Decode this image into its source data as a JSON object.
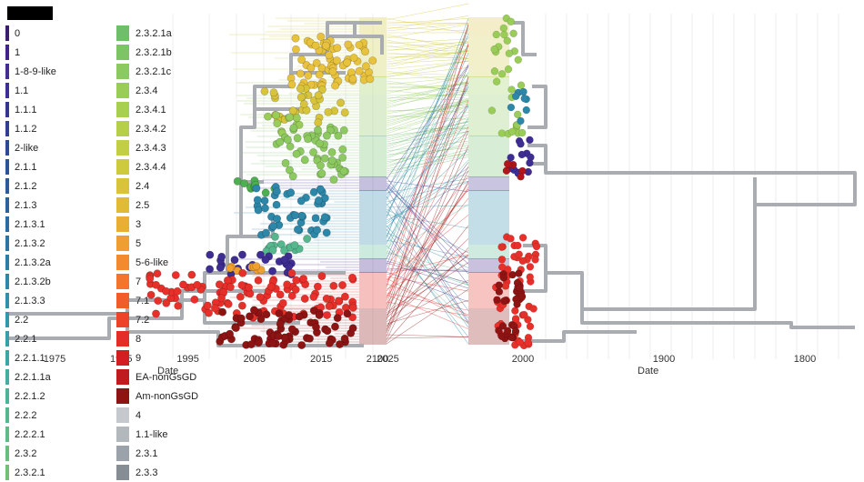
{
  "legend_left": {
    "items": [
      {
        "label": "0",
        "color": "#3b1d6e"
      },
      {
        "label": "1",
        "color": "#41228a"
      },
      {
        "label": "1-8-9-like",
        "color": "#432c92"
      },
      {
        "label": "1.1",
        "color": "#3b2f95"
      },
      {
        "label": "1.1.1",
        "color": "#34368f"
      },
      {
        "label": "1.1.2",
        "color": "#313e93"
      },
      {
        "label": "2-like",
        "color": "#2e4996"
      },
      {
        "label": "2.1.1",
        "color": "#2d5298"
      },
      {
        "label": "2.1.2",
        "color": "#2c5a9b"
      },
      {
        "label": "2.1.3",
        "color": "#2b629d"
      },
      {
        "label": "2.1.3.1",
        "color": "#2b6ba0"
      },
      {
        "label": "2.1.3.2",
        "color": "#2b74a3"
      },
      {
        "label": "2.1.3.2a",
        "color": "#2b7ea6"
      },
      {
        "label": "2.1.3.2b",
        "color": "#2c87a8"
      },
      {
        "label": "2.1.3.3",
        "color": "#2e90a9"
      },
      {
        "label": "2.2",
        "color": "#3198a9"
      },
      {
        "label": "2.2.1",
        "color": "#35a0a8"
      },
      {
        "label": "2.2.1.1",
        "color": "#3ba7a4"
      },
      {
        "label": "2.2.1.1a",
        "color": "#43ad9f"
      },
      {
        "label": "2.2.1.2",
        "color": "#4cb397"
      },
      {
        "label": "2.2.2",
        "color": "#55b78e"
      },
      {
        "label": "2.2.2.1",
        "color": "#5fbb86"
      },
      {
        "label": "2.3.2",
        "color": "#68be7d"
      },
      {
        "label": "2.3.2.1",
        "color": "#72c076"
      }
    ]
  },
  "legend_right": {
    "items": [
      {
        "label": "2.3.2.1a",
        "color": "#6fbf6a"
      },
      {
        "label": "2.3.2.1b",
        "color": "#7dc465"
      },
      {
        "label": "2.3.2.1c",
        "color": "#8cc95f"
      },
      {
        "label": "2.3.4",
        "color": "#9acc58"
      },
      {
        "label": "2.3.4.1",
        "color": "#a9cf51"
      },
      {
        "label": "2.3.4.2",
        "color": "#b6cf4a"
      },
      {
        "label": "2.3.4.3",
        "color": "#c2ce44"
      },
      {
        "label": "2.3.4.4",
        "color": "#cdca3e"
      },
      {
        "label": "2.4",
        "color": "#d8c43a"
      },
      {
        "label": "2.5",
        "color": "#e2bb36"
      },
      {
        "label": "3",
        "color": "#e9ae33"
      },
      {
        "label": "5",
        "color": "#ef9e31"
      },
      {
        "label": "5-6-like",
        "color": "#f28a2f"
      },
      {
        "label": "7",
        "color": "#f3742d"
      },
      {
        "label": "7.1",
        "color": "#f15c2b"
      },
      {
        "label": "7.2",
        "color": "#ec4329"
      },
      {
        "label": "8",
        "color": "#e32d26"
      },
      {
        "label": "9",
        "color": "#d41f22"
      },
      {
        "label": "EA-nonGsGD",
        "color": "#c01b1e"
      },
      {
        "label": "Am-nonGsGD",
        "color": "#8e1414"
      },
      {
        "label": "4",
        "color": "#c5c9cd"
      },
      {
        "label": "1.1-like",
        "color": "#b3b8bd"
      },
      {
        "label": "2.3.1",
        "color": "#9ca2a9"
      },
      {
        "label": "2.3.3",
        "color": "#868d95"
      }
    ]
  },
  "left_axis": {
    "ticks": [
      {
        "label": "1975",
        "year": 1975
      },
      {
        "label": "1985",
        "year": 1985
      },
      {
        "label": "1995",
        "year": 1995
      },
      {
        "label": "2005",
        "year": 2005
      },
      {
        "label": "2015",
        "year": 2015
      },
      {
        "label": "2025",
        "year": 2025
      }
    ],
    "title": "Date"
  },
  "right_axis": {
    "ticks": [
      {
        "label": "2100",
        "year": 2100
      },
      {
        "label": "2000",
        "year": 2000
      },
      {
        "label": "1900",
        "year": 1900
      },
      {
        "label": "1800",
        "year": 1800
      }
    ],
    "title": "Date"
  }
}
